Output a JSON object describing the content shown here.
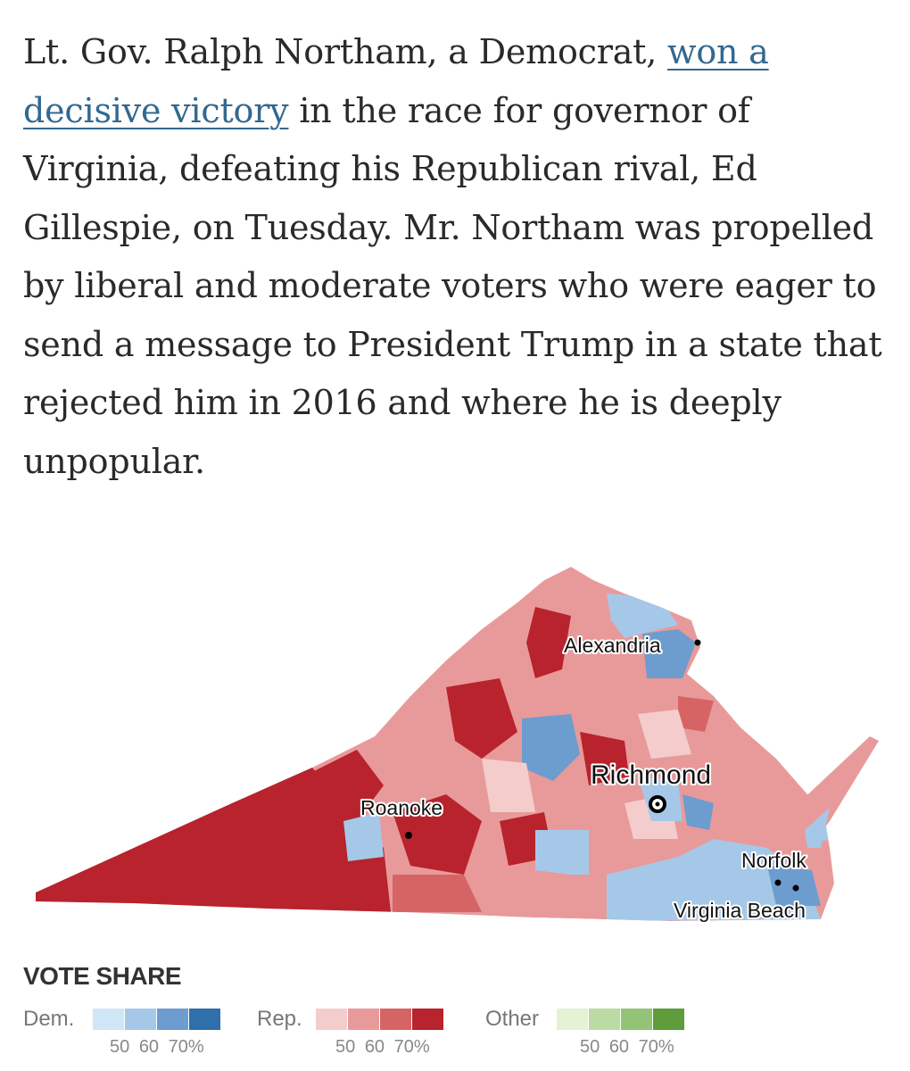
{
  "article": {
    "text_before": "Lt. Gov. Ralph Northam, a Democrat, ",
    "link_text": "won a decisive victory",
    "text_after": " in the race for governor of Virginia, defeating his Republican rival, Ed Gillespie, on Tuesday. Mr. Northam was propelled by liberal and moderate voters who were eager to send a message to President Trump in a state that rejected him in 2016 and where he is deeply unpopular."
  },
  "map": {
    "cities": {
      "alexandria": "Alexandria",
      "richmond": "Richmond",
      "roanoke": "Roanoke",
      "norfolk": "Norfolk",
      "virginia_beach": "Virginia Beach"
    },
    "colors": {
      "dem": [
        "#cfe6f7",
        "#a6c8e8",
        "#6d9ccf",
        "#2f6fab"
      ],
      "rep": [
        "#f5cccc",
        "#e89a9a",
        "#d76464",
        "#b8232d"
      ],
      "other": [
        "#e3f3d4",
        "#bcdba2",
        "#93c377",
        "#5f9c3c"
      ]
    }
  },
  "legend": {
    "title": "VOTE SHARE",
    "dem_label": "Dem.",
    "rep_label": "Rep.",
    "other_label": "Other",
    "ticks": [
      "50",
      "60",
      "70%"
    ]
  }
}
